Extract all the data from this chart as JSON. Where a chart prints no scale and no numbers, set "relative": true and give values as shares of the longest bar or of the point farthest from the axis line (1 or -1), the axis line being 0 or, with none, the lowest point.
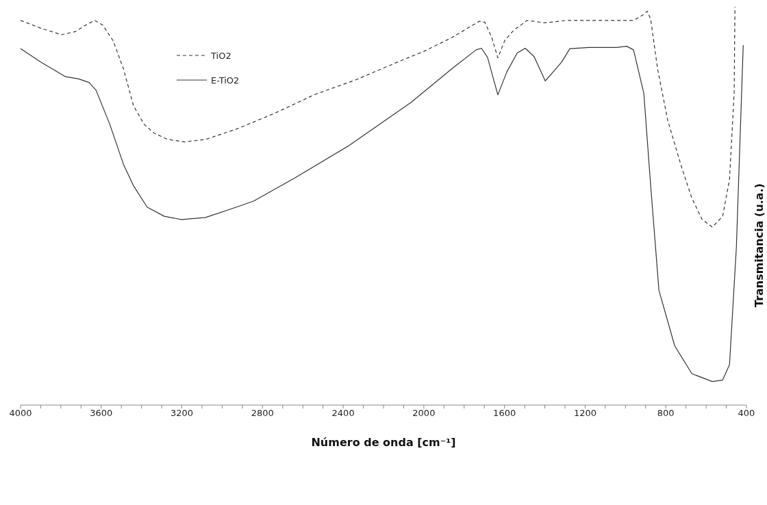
{
  "chart_data": {
    "type": "line",
    "relative": true,
    "xlabel": "Número de onda [cm⁻¹]",
    "ylabel": "Transmitancia (u.a.)",
    "xlim": [
      4000,
      400
    ],
    "xticks": [
      4000,
      {
        "value": 3900,
        "label": null
      },
      {
        "value": 3800,
        "label": null
      },
      {
        "value": 3700,
        "label": null
      },
      3600,
      {
        "value": 3500,
        "label": null
      },
      {
        "value": 3400,
        "label": null
      },
      {
        "value": 3300,
        "label": null
      },
      3200,
      {
        "value": 3100,
        "label": null
      },
      {
        "value": 3000,
        "label": null
      },
      {
        "value": 2900,
        "label": null
      },
      2800,
      {
        "value": 2700,
        "label": null
      },
      {
        "value": 2600,
        "label": null
      },
      {
        "value": 2500,
        "label": null
      },
      2400,
      {
        "value": 2300,
        "label": null
      },
      {
        "value": 2200,
        "label": null
      },
      {
        "value": 2100,
        "label": null
      },
      2000,
      {
        "value": 1900,
        "label": null
      },
      {
        "value": 1800,
        "label": null
      },
      {
        "value": 1700,
        "label": null
      },
      1600,
      {
        "value": 1500,
        "label": null
      },
      {
        "value": 1400,
        "label": null
      },
      {
        "value": 1300,
        "label": null
      },
      1200,
      {
        "value": 1100,
        "label": null
      },
      {
        "value": 1000,
        "label": null
      },
      {
        "value": 900,
        "label": null
      },
      800,
      {
        "value": 700,
        "label": null
      },
      {
        "value": 600,
        "label": null
      },
      {
        "value": 500,
        "label": null
      },
      400
    ],
    "legend": "top left",
    "grid": false,
    "marker": "none",
    "series": [
      {
        "name": "TiO2",
        "color": "#333333",
        "line_style": "dashed",
        "x": [
          4000,
          3898,
          3796,
          3728,
          3677,
          3633,
          3592,
          3541,
          3490,
          3440,
          3389,
          3338,
          3270,
          3185,
          3083,
          2930,
          2743,
          2540,
          2336,
          2132,
          1996,
          1860,
          1758,
          1724,
          1697,
          1663,
          1633,
          1599,
          1555,
          1487,
          1402,
          1283,
          960,
          909,
          892,
          875,
          841,
          790,
          722,
          671,
          620,
          569,
          518,
          484,
          461,
          457
        ],
        "values": [
          0.966,
          0.946,
          0.93,
          0.938,
          0.954,
          0.966,
          0.954,
          0.915,
          0.845,
          0.752,
          0.706,
          0.683,
          0.667,
          0.661,
          0.667,
          0.693,
          0.732,
          0.78,
          0.817,
          0.861,
          0.889,
          0.923,
          0.954,
          0.964,
          0.961,
          0.923,
          0.872,
          0.915,
          0.941,
          0.966,
          0.96,
          0.966,
          0.966,
          0.981,
          0.989,
          0.969,
          0.845,
          0.714,
          0.598,
          0.52,
          0.466,
          0.447,
          0.474,
          0.567,
          0.783,
          1.0
        ]
      },
      {
        "name": "E-TiO2",
        "color": "#333333",
        "line_style": "solid",
        "x": [
          4000,
          3898,
          3779,
          3711,
          3660,
          3626,
          3558,
          3490,
          3440,
          3372,
          3287,
          3202,
          3083,
          2930,
          2845,
          2641,
          2370,
          2064,
          1860,
          1741,
          1714,
          1684,
          1633,
          1588,
          1537,
          1497,
          1453,
          1398,
          1358,
          1317,
          1276,
          1181,
          1045,
          994,
          960,
          909,
          875,
          834,
          756,
          671,
          569,
          518,
          484,
          450,
          416
        ],
        "values": [
          0.895,
          0.861,
          0.825,
          0.819,
          0.81,
          0.791,
          0.706,
          0.605,
          0.551,
          0.497,
          0.474,
          0.466,
          0.471,
          0.497,
          0.512,
          0.57,
          0.652,
          0.76,
          0.845,
          0.892,
          0.896,
          0.873,
          0.779,
          0.837,
          0.884,
          0.896,
          0.875,
          0.814,
          0.837,
          0.861,
          0.895,
          0.898,
          0.898,
          0.901,
          0.892,
          0.783,
          0.551,
          0.288,
          0.149,
          0.079,
          0.059,
          0.063,
          0.102,
          0.396,
          0.904
        ]
      }
    ]
  }
}
